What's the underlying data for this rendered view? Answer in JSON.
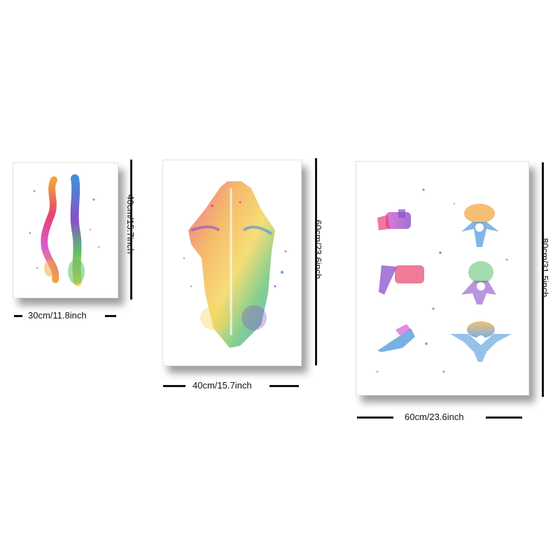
{
  "posters": [
    {
      "id": "small",
      "artwork": "spine-side-and-back-view",
      "width_label": "30cm/11.8inch",
      "height_label": "40cm/15.7inch"
    },
    {
      "id": "medium",
      "artwork": "back-muscles-torso",
      "width_label": "40cm/15.7inch",
      "height_label": "60cm/23.6inch"
    },
    {
      "id": "large",
      "artwork": "six-vertebrae",
      "width_label": "60cm/23.6inch",
      "height_label": "80cm/31.5inch"
    }
  ],
  "palette": [
    "#e8436e",
    "#f2a33a",
    "#f3d24a",
    "#5bbf6a",
    "#3f8fd8",
    "#8a4fc9",
    "#d65ad1"
  ]
}
